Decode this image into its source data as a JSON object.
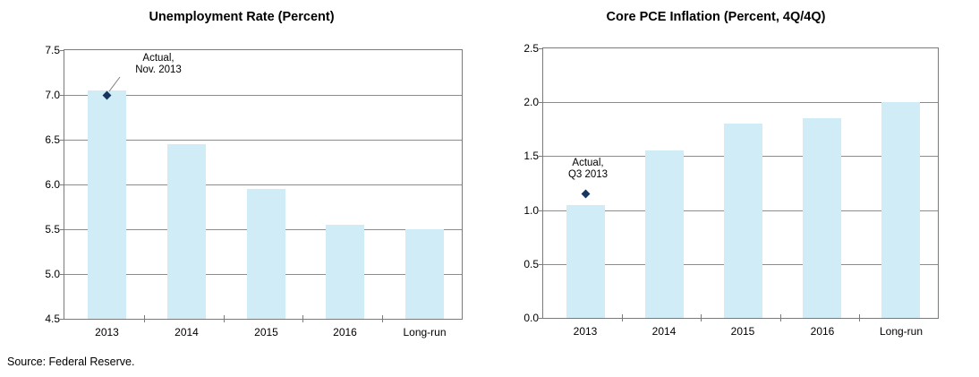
{
  "page": {
    "source_note": "Source: Federal Reserve."
  },
  "colors": {
    "bar_fill": "#cfecf7",
    "annotation_point": "#17365d",
    "gridline": "#8c8c8c",
    "plot_border": "#7a7a7a",
    "leader_line": "#808080",
    "text": "#000000",
    "background": "#ffffff"
  },
  "chart_data": [
    {
      "type": "bar",
      "title": "Unemployment Rate (Percent)",
      "categories": [
        "2013",
        "2014",
        "2015",
        "2016",
        "Long-run"
      ],
      "values": [
        7.05,
        6.45,
        5.95,
        5.55,
        5.5
      ],
      "ylim": [
        4.5,
        7.5
      ],
      "ytick_step": 0.5,
      "ytick_labels": [
        "4.5",
        "5.0",
        "5.5",
        "6.0",
        "6.5",
        "7.0",
        "7.5"
      ],
      "grid": true,
      "legend": "none",
      "annotation": {
        "lines": [
          "Actual,",
          "Nov. 2013"
        ],
        "point": {
          "category": "2013",
          "value": 7.0
        },
        "has_leader_line": true
      }
    },
    {
      "type": "bar",
      "title": "Core PCE Inflation (Percent, 4Q/4Q)",
      "categories": [
        "2013",
        "2014",
        "2015",
        "2016",
        "Long-run"
      ],
      "values": [
        1.05,
        1.55,
        1.8,
        1.85,
        2.0
      ],
      "ylim": [
        0.0,
        2.5
      ],
      "ytick_step": 0.5,
      "ytick_labels": [
        "0.0",
        "0.5",
        "1.0",
        "1.5",
        "2.0",
        "2.5"
      ],
      "grid": true,
      "legend": "none",
      "annotation": {
        "lines": [
          "Actual,",
          "Q3 2013"
        ],
        "point": {
          "category": "2013",
          "value": 1.15
        },
        "has_leader_line": false
      }
    }
  ]
}
